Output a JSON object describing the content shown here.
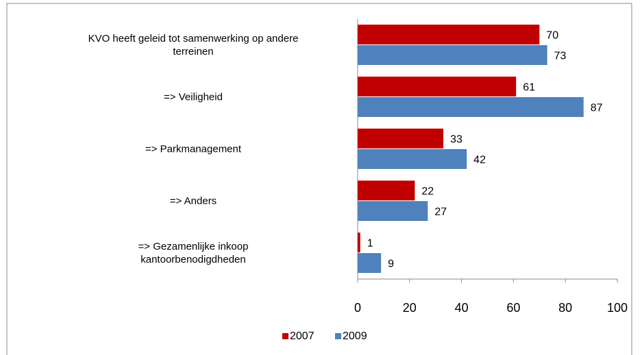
{
  "chart_data": {
    "type": "barh",
    "categories": [
      "KVO heeft geleid tot samenwerking op andere\nterreinen",
      "=> Veiligheid",
      "=> Parkmanagement",
      "=> Anders",
      "=> Gezamenlijke inkoop\nkantoorbenodigdheden"
    ],
    "series": [
      {
        "name": "2007",
        "color": "#c00000",
        "values": [
          70,
          61,
          33,
          22,
          1
        ]
      },
      {
        "name": "2009",
        "color": "#4f81bd",
        "values": [
          73,
          87,
          42,
          27,
          9
        ]
      }
    ],
    "xlim": [
      0,
      100
    ],
    "xticks": [
      0,
      20,
      40,
      60,
      80,
      100
    ]
  }
}
